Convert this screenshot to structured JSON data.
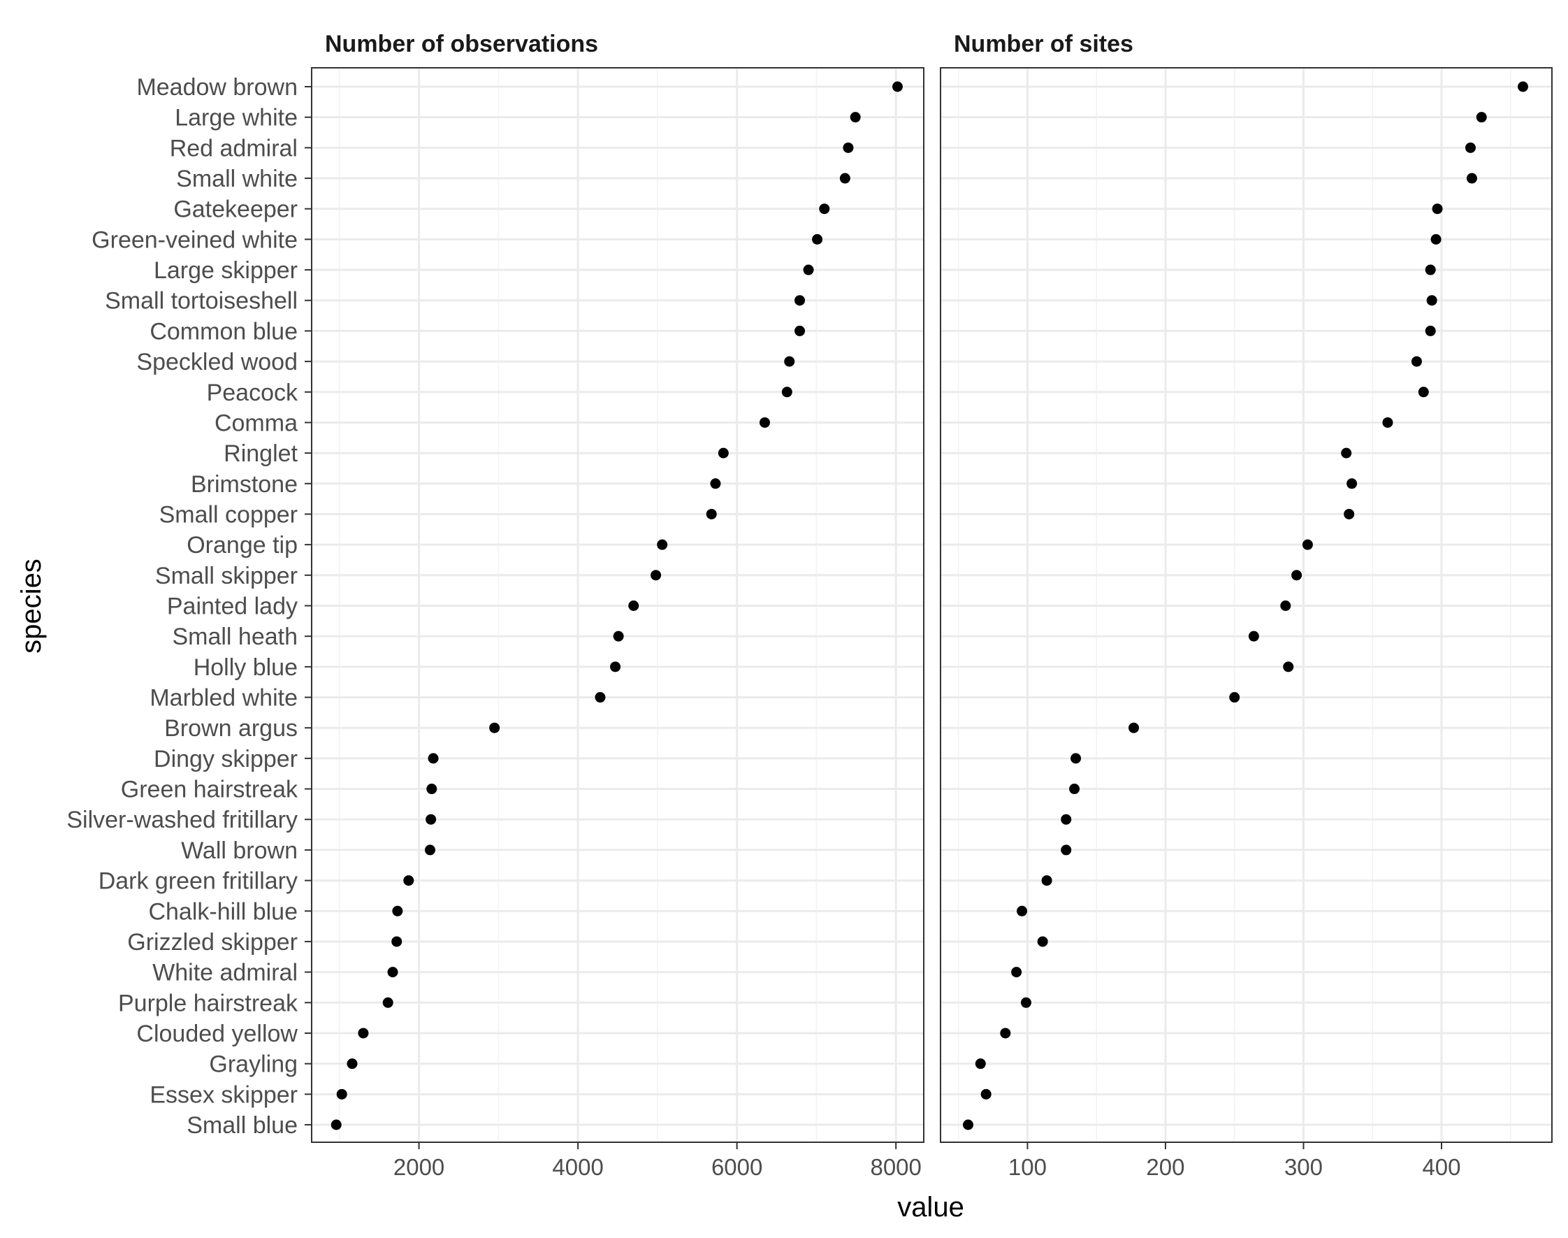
{
  "chart_data": {
    "type": "scatter",
    "subtype": "faceted dot plot",
    "xlabel": "value",
    "ylabel": "species",
    "grid": true,
    "theme": "bw",
    "point_color": "#000000",
    "species": [
      "Meadow brown",
      "Large white",
      "Red admiral",
      "Small white",
      "Gatekeeper",
      "Green-veined white",
      "Large skipper",
      "Small tortoiseshell",
      "Common blue",
      "Speckled wood",
      "Peacock",
      "Comma ",
      "Ringlet",
      "Brimstone",
      "Small copper",
      "Orange tip",
      "Small skipper",
      "Painted lady",
      "Small heath",
      "Holly blue",
      "Marbled white",
      "Brown argus",
      "Dingy skipper",
      "Green hairstreak ",
      "Silver-washed fritillary",
      "Wall brown",
      "Dark green fritillary",
      "Chalk-hill blue",
      "Grizzled skipper",
      "White admiral",
      "Purple hairstreak",
      "Clouded yellow",
      "Grayling",
      "Essex skipper",
      "Small blue"
    ],
    "panels": [
      {
        "title": "Number of observations",
        "xlim": [
          650,
          8350
        ],
        "x_ticks": [
          2000,
          4000,
          6000,
          8000
        ],
        "x_tick_labels": [
          "2000",
          "4000",
          "6000",
          "8000"
        ],
        "x_minor_ticks": [
          1000,
          3000,
          5000,
          7000
        ],
        "values": [
          8020,
          7490,
          7400,
          7360,
          7100,
          7010,
          6900,
          6790,
          6790,
          6660,
          6630,
          6350,
          5830,
          5730,
          5680,
          5060,
          4980,
          4700,
          4510,
          4470,
          4280,
          2950,
          2180,
          2160,
          2150,
          2140,
          1870,
          1730,
          1720,
          1670,
          1610,
          1300,
          1160,
          1030,
          960
        ]
      },
      {
        "title": "Number of sites",
        "xlim": [
          37,
          480
        ],
        "x_ticks": [
          100,
          200,
          300,
          400
        ],
        "x_tick_labels": [
          "100",
          "200",
          "300",
          "400"
        ],
        "x_minor_ticks": [
          50,
          150,
          250,
          350,
          450
        ],
        "values": [
          459,
          429,
          421,
          422,
          397,
          396,
          392,
          393,
          392,
          382,
          387,
          361,
          331,
          335,
          333,
          303,
          295,
          287,
          264,
          289,
          250,
          177,
          135,
          134,
          128,
          128,
          114,
          96,
          111,
          92,
          99,
          84,
          66,
          70,
          57
        ]
      }
    ]
  }
}
